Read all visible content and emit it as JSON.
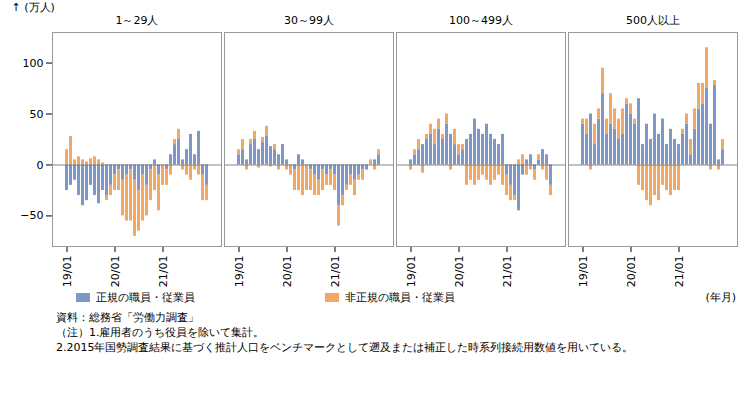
{
  "chart_data": {
    "type": "bar",
    "stacked": true,
    "grid": false,
    "y_label": "(万人)",
    "x_label": "(年月)",
    "ylim": [
      -80,
      130
    ],
    "yticks": [
      -50,
      0,
      50,
      100
    ],
    "categories": [
      "19/01",
      null,
      null,
      null,
      null,
      null,
      null,
      null,
      null,
      null,
      null,
      null,
      "20/01",
      null,
      null,
      null,
      null,
      null,
      null,
      null,
      null,
      null,
      null,
      null,
      "21/01",
      null,
      null,
      null,
      null,
      null,
      null,
      null,
      null,
      null,
      null,
      null
    ],
    "facets": [
      {
        "name": "1～29人",
        "series": [
          {
            "name": "正規の職員・従業員",
            "color": "#7f97c6",
            "values": [
              -25,
              -20,
              -15,
              -30,
              -40,
              -35,
              -20,
              -30,
              -38,
              -25,
              -30,
              -20,
              -10,
              -5,
              -15,
              -10,
              -5,
              -15,
              -25,
              -10,
              -20,
              -5,
              5,
              -10,
              0,
              -5,
              10,
              20,
              25,
              5,
              15,
              30,
              10,
              33,
              -10,
              -20
            ]
          },
          {
            "name": "非正規の職員・従業員",
            "color": "#f2a862",
            "values": [
              15,
              28,
              5,
              8,
              5,
              3,
              6,
              8,
              5,
              2,
              -5,
              -10,
              -15,
              -20,
              -35,
              -45,
              -50,
              -55,
              -40,
              -45,
              -30,
              -30,
              -25,
              -35,
              -20,
              -15,
              -10,
              5,
              10,
              -5,
              -10,
              -15,
              -5,
              -10,
              -25,
              -15
            ]
          }
        ]
      },
      {
        "name": "30～99人",
        "series": [
          {
            "name": "正規の職員・従業員",
            "color": "#7f97c6",
            "values": [
              10,
              15,
              5,
              20,
              25,
              15,
              22,
              28,
              18,
              15,
              10,
              20,
              5,
              0,
              -5,
              10,
              5,
              0,
              -5,
              -10,
              -15,
              -5,
              -10,
              -5,
              -10,
              -40,
              -30,
              -20,
              -10,
              -15,
              -10,
              -5,
              -5,
              0,
              5,
              10
            ]
          },
          {
            "name": "非正規の職員・従業員",
            "color": "#f2a862",
            "values": [
              5,
              10,
              -5,
              5,
              8,
              -3,
              5,
              10,
              -2,
              5,
              -5,
              0,
              -5,
              -10,
              -20,
              -25,
              -30,
              -25,
              -20,
              -20,
              -15,
              -20,
              -10,
              -15,
              -15,
              -20,
              -10,
              -5,
              -10,
              -15,
              -5,
              -10,
              0,
              5,
              -5,
              5
            ]
          }
        ]
      },
      {
        "name": "100～499人",
        "series": [
          {
            "name": "正規の職員・従業員",
            "color": "#7f97c6",
            "values": [
              5,
              10,
              15,
              20,
              25,
              30,
              20,
              35,
              25,
              40,
              30,
              20,
              10,
              15,
              25,
              30,
              45,
              35,
              30,
              40,
              30,
              25,
              20,
              30,
              -10,
              -20,
              -30,
              -45,
              -10,
              5,
              10,
              -5,
              5,
              15,
              10,
              -20
            ]
          },
          {
            "name": "非正規の職員・従業員",
            "color": "#f2a862",
            "values": [
              -5,
              5,
              10,
              -8,
              5,
              10,
              15,
              10,
              5,
              10,
              -5,
              15,
              10,
              5,
              -20,
              -15,
              -20,
              -15,
              -10,
              -15,
              -20,
              -15,
              -10,
              -20,
              -20,
              -15,
              -5,
              5,
              10,
              -10,
              -5,
              -10,
              5,
              -5,
              -15,
              -10
            ]
          }
        ]
      },
      {
        "name": "500人以上",
        "series": [
          {
            "name": "正規の職員・従業員",
            "color": "#7f97c6",
            "values": [
              40,
              30,
              50,
              20,
              45,
              70,
              30,
              40,
              35,
              25,
              30,
              60,
              50,
              40,
              65,
              20,
              40,
              25,
              50,
              30,
              45,
              20,
              35,
              25,
              20,
              30,
              40,
              10,
              35,
              55,
              60,
              75,
              40,
              78,
              5,
              15
            ]
          },
          {
            "name": "非正規の職員・従業員",
            "color": "#f2a862",
            "values": [
              5,
              15,
              -5,
              20,
              10,
              25,
              15,
              30,
              20,
              20,
              25,
              5,
              10,
              5,
              -20,
              -25,
              -35,
              -40,
              -30,
              -35,
              -20,
              -25,
              -30,
              -25,
              -25,
              5,
              10,
              15,
              20,
              25,
              20,
              40,
              -5,
              5,
              -5,
              10
            ]
          }
        ]
      }
    ],
    "source": "資料：総務省「労働力調査」",
    "notes": [
      "（注）1.雇用者のうち役員を除いて集計。",
      "2.2015年国勢調査結果に基づく推計人口をベンチマークとして遡及または補正した時系列接続用数値を用いている。"
    ]
  }
}
